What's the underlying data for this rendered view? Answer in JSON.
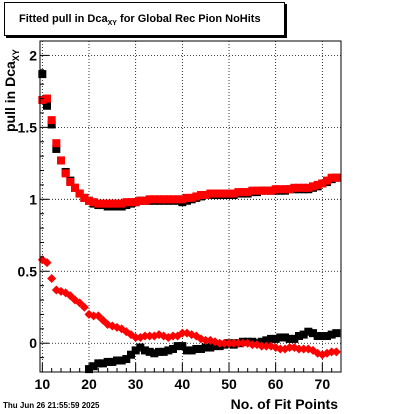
{
  "title": {
    "prefix": "Fitted pull in Dca",
    "subscript": "XY",
    "suffix": " for Global Rec Pion NoHits"
  },
  "ylabel": {
    "main": "pull in Dca",
    "subscript": "XY"
  },
  "xlabel": "No. of Fit Points",
  "datestamp": "Thu Jun 26 21:55:59 2025",
  "colors": {
    "black_series": "#000000",
    "red_series": "#ff0000"
  },
  "chart_data": {
    "type": "scatter",
    "xlim": [
      9.5,
      74
    ],
    "ylim": [
      -0.2,
      2.1
    ],
    "grid": true,
    "x_ticks": [
      {
        "value": 10,
        "label": "10"
      },
      {
        "value": 20,
        "label": "20"
      },
      {
        "value": 30,
        "label": "30"
      },
      {
        "value": 40,
        "label": "40"
      },
      {
        "value": 50,
        "label": "50"
      },
      {
        "value": 60,
        "label": "60"
      },
      {
        "value": 70,
        "label": "70"
      }
    ],
    "y_ticks": [
      {
        "value": 0,
        "label": "0"
      },
      {
        "value": 0.5,
        "label": "0.5"
      },
      {
        "value": 1,
        "label": "1"
      },
      {
        "value": 1.5,
        "label": "1.5"
      },
      {
        "value": 2,
        "label": "2"
      }
    ],
    "series": [
      {
        "color": "#000000",
        "marker": "square",
        "x": [
          10,
          11,
          12,
          13,
          14,
          15,
          16,
          17,
          18,
          19,
          20,
          21,
          22,
          23,
          24,
          25,
          26,
          27,
          28,
          29,
          30,
          31,
          32,
          33,
          34,
          35,
          36,
          37,
          38,
          39,
          40,
          41,
          42,
          43,
          44,
          45,
          46,
          47,
          48,
          49,
          50,
          51,
          52,
          53,
          54,
          55,
          56,
          57,
          58,
          59,
          60,
          61,
          62,
          63,
          64,
          65,
          66,
          67,
          68,
          69,
          70,
          71,
          72,
          73
        ],
        "y": [
          1.87,
          1.65,
          1.52,
          1.35,
          1.27,
          1.19,
          1.13,
          1.08,
          1.04,
          1.01,
          0.99,
          0.97,
          0.96,
          0.96,
          0.95,
          0.95,
          0.95,
          0.95,
          0.96,
          0.97,
          0.98,
          0.99,
          0.99,
          0.99,
          0.99,
          0.99,
          0.99,
          0.99,
          0.99,
          0.99,
          0.98,
          0.99,
          1.0,
          1.01,
          1.02,
          1.03,
          1.03,
          1.03,
          1.03,
          1.03,
          1.03,
          1.03,
          1.04,
          1.04,
          1.04,
          1.05,
          1.05,
          1.06,
          1.06,
          1.06,
          1.06,
          1.06,
          1.06,
          1.07,
          1.07,
          1.07,
          1.07,
          1.07,
          1.08,
          1.09,
          1.11,
          1.12,
          1.14,
          1.15
        ]
      },
      {
        "color": "#ff0000",
        "marker": "square",
        "x": [
          10,
          11,
          12,
          13,
          14,
          15,
          16,
          17,
          18,
          19,
          20,
          21,
          22,
          23,
          24,
          25,
          26,
          27,
          28,
          29,
          30,
          31,
          32,
          33,
          34,
          35,
          36,
          37,
          38,
          39,
          40,
          41,
          42,
          43,
          44,
          45,
          46,
          47,
          48,
          49,
          50,
          51,
          52,
          53,
          54,
          55,
          56,
          57,
          58,
          59,
          60,
          61,
          62,
          63,
          64,
          65,
          66,
          67,
          68,
          69,
          70,
          71,
          72,
          73
        ],
        "y": [
          1.69,
          1.7,
          1.55,
          1.39,
          1.27,
          1.18,
          1.12,
          1.08,
          1.04,
          1.01,
          0.99,
          0.98,
          0.97,
          0.97,
          0.97,
          0.97,
          0.97,
          0.97,
          0.98,
          0.98,
          0.98,
          0.99,
          0.99,
          1.0,
          1.0,
          1.0,
          1.0,
          1.0,
          1.0,
          1.0,
          1.0,
          1.01,
          1.01,
          1.02,
          1.03,
          1.03,
          1.04,
          1.04,
          1.04,
          1.04,
          1.04,
          1.04,
          1.05,
          1.05,
          1.05,
          1.06,
          1.06,
          1.06,
          1.06,
          1.06,
          1.07,
          1.07,
          1.07,
          1.07,
          1.08,
          1.08,
          1.08,
          1.08,
          1.09,
          1.1,
          1.11,
          1.13,
          1.15,
          1.15
        ]
      },
      {
        "color": "#000000",
        "marker": "square",
        "x": [
          20,
          21,
          22,
          23,
          24,
          25,
          26,
          27,
          28,
          29,
          30,
          31,
          32,
          33,
          34,
          35,
          36,
          37,
          38,
          39,
          40,
          41,
          42,
          43,
          44,
          45,
          46,
          47,
          48,
          49,
          50,
          51,
          52,
          53,
          54,
          55,
          56,
          57,
          58,
          59,
          60,
          61,
          62,
          63,
          64,
          65,
          66,
          67,
          68,
          69,
          70,
          71,
          72,
          73
        ],
        "y": [
          -0.18,
          -0.16,
          -0.14,
          -0.14,
          -0.13,
          -0.13,
          -0.12,
          -0.12,
          -0.11,
          -0.08,
          -0.05,
          -0.03,
          -0.05,
          -0.06,
          -0.07,
          -0.06,
          -0.06,
          -0.05,
          -0.04,
          -0.02,
          -0.02,
          -0.05,
          -0.05,
          -0.04,
          -0.04,
          -0.03,
          -0.03,
          -0.02,
          -0.02,
          -0.01,
          0.0,
          -0.01,
          0.0,
          0.01,
          0.01,
          0.01,
          0.0,
          0.01,
          0.02,
          0.03,
          0.03,
          0.04,
          0.04,
          0.03,
          0.03,
          0.05,
          0.06,
          0.08,
          0.07,
          0.05,
          0.05,
          0.05,
          0.06,
          0.07
        ]
      },
      {
        "color": "#ff0000",
        "marker": "diamond",
        "x": [
          10,
          11,
          12,
          13,
          14,
          15,
          16,
          17,
          18,
          19,
          20,
          21,
          22,
          23,
          24,
          25,
          26,
          27,
          28,
          29,
          30,
          31,
          32,
          33,
          34,
          35,
          36,
          37,
          38,
          39,
          40,
          41,
          42,
          43,
          44,
          45,
          46,
          47,
          48,
          49,
          50,
          51,
          52,
          53,
          54,
          55,
          56,
          57,
          58,
          59,
          60,
          61,
          62,
          63,
          64,
          65,
          66,
          67,
          68,
          69,
          70,
          71,
          72,
          73
        ],
        "y": [
          0.58,
          0.56,
          0.45,
          0.37,
          0.36,
          0.35,
          0.33,
          0.3,
          0.28,
          0.25,
          0.2,
          0.19,
          0.19,
          0.16,
          0.13,
          0.12,
          0.11,
          0.1,
          0.08,
          0.06,
          0.04,
          0.04,
          0.05,
          0.05,
          0.05,
          0.06,
          0.05,
          0.04,
          0.05,
          0.05,
          0.07,
          0.07,
          0.06,
          0.05,
          0.03,
          0.02,
          0.02,
          0.01,
          0.0,
          0.0,
          0.0,
          0.0,
          0.0,
          0.0,
          0.0,
          -0.01,
          -0.01,
          -0.02,
          -0.02,
          -0.02,
          -0.03,
          -0.04,
          -0.04,
          -0.03,
          -0.03,
          -0.04,
          -0.04,
          -0.04,
          -0.05,
          -0.07,
          -0.08,
          -0.07,
          -0.06,
          -0.06
        ]
      }
    ]
  }
}
